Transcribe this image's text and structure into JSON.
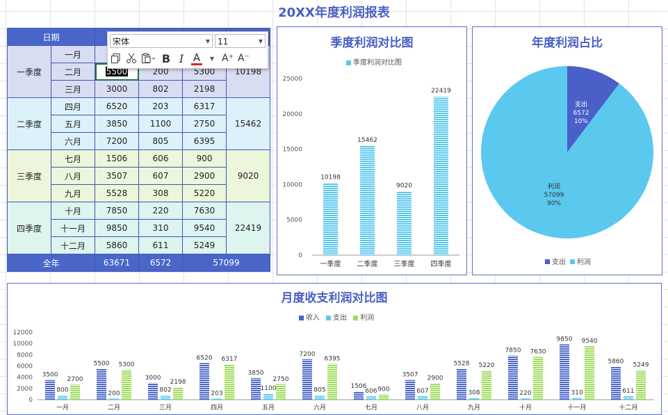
{
  "title": "20XX年度利润报表",
  "table": {
    "header": [
      "日期",
      "",
      "",
      "",
      ""
    ],
    "quarters": [
      {
        "name": "一季度",
        "months": [
          {
            "m": "一月",
            "income": "",
            "expense": "",
            "profit": ""
          },
          {
            "m": "二月",
            "income": "5500",
            "expense": "200",
            "profit": "5300"
          },
          {
            "m": "三月",
            "income": "3000",
            "expense": "802",
            "profit": "2198"
          }
        ],
        "total": "10198"
      },
      {
        "name": "二季度",
        "months": [
          {
            "m": "四月",
            "income": "6520",
            "expense": "203",
            "profit": "6317"
          },
          {
            "m": "五月",
            "income": "3850",
            "expense": "1100",
            "profit": "2750"
          },
          {
            "m": "六月",
            "income": "7200",
            "expense": "805",
            "profit": "6395"
          }
        ],
        "total": "15462"
      },
      {
        "name": "三季度",
        "months": [
          {
            "m": "七月",
            "income": "1506",
            "expense": "606",
            "profit": "900"
          },
          {
            "m": "八月",
            "income": "3507",
            "expense": "607",
            "profit": "2900"
          },
          {
            "m": "九月",
            "income": "5528",
            "expense": "308",
            "profit": "5220"
          }
        ],
        "total": "9020"
      },
      {
        "name": "四季度",
        "months": [
          {
            "m": "十月",
            "income": "7850",
            "expense": "220",
            "profit": "7630"
          },
          {
            "m": "十一月",
            "income": "9850",
            "expense": "310",
            "profit": "9540"
          },
          {
            "m": "十二月",
            "income": "5860",
            "expense": "611",
            "profit": "5249"
          }
        ],
        "total": "22419"
      }
    ],
    "total_row": {
      "label": "全年",
      "income": "63671",
      "expense": "6572",
      "profit": "57099"
    }
  },
  "toolbar": {
    "font_name": "宋体",
    "font_size": "11",
    "bold": "B",
    "italic": "I",
    "font_color": "A",
    "grow": "A⁺",
    "shrink": "A⁻"
  },
  "colors": {
    "income": "#4A66C9",
    "expense": "#5BC8EE",
    "profit": "#9EDD5C",
    "accent": "#4A5FC1"
  },
  "chart_data": [
    {
      "type": "bar",
      "title": "季度利润对比图",
      "legend": [
        "季度利润对比图"
      ],
      "legend_position": "top",
      "categories": [
        "一季度",
        "二季度",
        "三季度",
        "四季度"
      ],
      "values": [
        10198,
        15462,
        9020,
        22419
      ],
      "yticks": [
        "0",
        "5000",
        "10000",
        "15000",
        "20000",
        "25000"
      ],
      "ylim": [
        0,
        25000
      ]
    },
    {
      "type": "pie",
      "title": "年度利润占比",
      "legend_position": "bottom",
      "slices": [
        {
          "name": "支出",
          "value": 6572,
          "value_label": "6572",
          "percent_label": "10%"
        },
        {
          "name": "利润",
          "value": 57099,
          "value_label": "57099",
          "percent_label": "90%"
        }
      ]
    },
    {
      "type": "bar",
      "title": "月度收支利润对比图",
      "legend_position": "top",
      "categories": [
        "一月",
        "二月",
        "三月",
        "四月",
        "五月",
        "六月",
        "七月",
        "八月",
        "九月",
        "十月",
        "十一月",
        "十二月"
      ],
      "series": [
        {
          "name": "收入",
          "values": [
            3500,
            5500,
            3000,
            6520,
            3850,
            7200,
            1506,
            3507,
            5528,
            7850,
            9850,
            5860
          ]
        },
        {
          "name": "支出",
          "values": [
            800,
            200,
            802,
            203,
            1100,
            805,
            606,
            607,
            308,
            220,
            310,
            611
          ]
        },
        {
          "name": "利润",
          "values": [
            2700,
            5300,
            2198,
            6317,
            2750,
            6395,
            900,
            2900,
            5220,
            7630,
            9540,
            5249
          ]
        }
      ],
      "yticks": [
        "0",
        "2000",
        "4000",
        "6000",
        "8000",
        "10000",
        "12000"
      ],
      "ylim": [
        0,
        12000
      ]
    }
  ]
}
